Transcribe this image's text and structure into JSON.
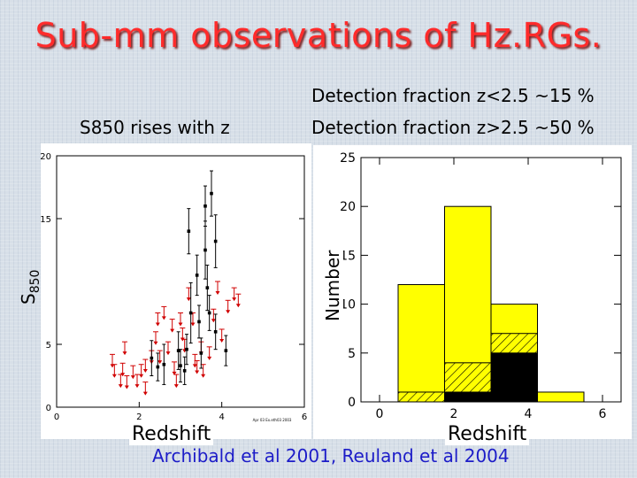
{
  "title": "Sub-mm observations of Hz.RGs.",
  "captions": {
    "left": "S850 rises with z",
    "right_line1": "Detection fraction z<2.5 ~15 %",
    "right_line2": "Detection fraction z>2.5 ~50 %"
  },
  "reference": "Archibald et al 2001, Reuland et al 2004",
  "chart_data": [
    {
      "type": "scatter",
      "xlabel": "Redshift",
      "ylabel": "S",
      "ylabel_sub": "850",
      "xlim": [
        0,
        6
      ],
      "ylim": [
        0,
        20
      ],
      "xticks": [
        "0",
        "2",
        "4",
        "6"
      ],
      "yticks": [
        "0",
        "5",
        "15",
        "20"
      ],
      "stamp": "Apr 03 Ex.eth03 2003",
      "detections": [
        {
          "x": 2.3,
          "y": 3.9,
          "err": 1.4
        },
        {
          "x": 2.45,
          "y": 3.2,
          "err": 1.1
        },
        {
          "x": 2.6,
          "y": 3.4,
          "err": 1.6
        },
        {
          "x": 2.95,
          "y": 4.5,
          "err": 1.5
        },
        {
          "x": 3.0,
          "y": 3.3,
          "err": 1.3
        },
        {
          "x": 3.1,
          "y": 2.9,
          "err": 1.1
        },
        {
          "x": 3.15,
          "y": 4.6,
          "err": 1.2
        },
        {
          "x": 3.2,
          "y": 14.0,
          "err": 1.8
        },
        {
          "x": 3.25,
          "y": 7.5,
          "err": 2.4
        },
        {
          "x": 3.4,
          "y": 10.5,
          "err": 1.6
        },
        {
          "x": 3.45,
          "y": 6.8,
          "err": 1.3
        },
        {
          "x": 3.6,
          "y": 16.0,
          "err": 1.6
        },
        {
          "x": 3.6,
          "y": 12.5,
          "err": 2.3
        },
        {
          "x": 3.65,
          "y": 9.5,
          "err": 1.8
        },
        {
          "x": 3.7,
          "y": 7.5,
          "err": 1.4
        },
        {
          "x": 3.75,
          "y": 17.0,
          "err": 1.8
        },
        {
          "x": 3.85,
          "y": 13.2,
          "err": 2.1
        },
        {
          "x": 3.5,
          "y": 4.3,
          "err": 1.2
        },
        {
          "x": 3.85,
          "y": 6.0,
          "err": 1.4
        },
        {
          "x": 4.1,
          "y": 4.5,
          "err": 1.2
        }
      ],
      "upper_limits": [
        {
          "x": 1.35,
          "y": 4.2
        },
        {
          "x": 1.4,
          "y": 3.4
        },
        {
          "x": 1.55,
          "y": 2.6
        },
        {
          "x": 1.6,
          "y": 3.5
        },
        {
          "x": 1.65,
          "y": 5.2
        },
        {
          "x": 1.7,
          "y": 2.5
        },
        {
          "x": 1.85,
          "y": 3.3
        },
        {
          "x": 1.95,
          "y": 2.6
        },
        {
          "x": 2.05,
          "y": 3.4
        },
        {
          "x": 2.15,
          "y": 3.8
        },
        {
          "x": 2.15,
          "y": 2.0
        },
        {
          "x": 2.3,
          "y": 4.5
        },
        {
          "x": 2.4,
          "y": 6.0
        },
        {
          "x": 2.45,
          "y": 7.5
        },
        {
          "x": 2.5,
          "y": 4.5
        },
        {
          "x": 2.6,
          "y": 8.0
        },
        {
          "x": 2.7,
          "y": 5.2
        },
        {
          "x": 2.8,
          "y": 7.0
        },
        {
          "x": 2.85,
          "y": 3.6
        },
        {
          "x": 2.9,
          "y": 2.6
        },
        {
          "x": 3.0,
          "y": 7.5
        },
        {
          "x": 3.05,
          "y": 6.3
        },
        {
          "x": 3.1,
          "y": 5.4
        },
        {
          "x": 3.2,
          "y": 9.5
        },
        {
          "x": 3.3,
          "y": 7.5
        },
        {
          "x": 3.35,
          "y": 4.2
        },
        {
          "x": 3.4,
          "y": 3.7
        },
        {
          "x": 3.5,
          "y": 5.2
        },
        {
          "x": 3.55,
          "y": 3.4
        },
        {
          "x": 3.7,
          "y": 4.8
        },
        {
          "x": 3.8,
          "y": 7.8
        },
        {
          "x": 3.9,
          "y": 10.0
        },
        {
          "x": 4.0,
          "y": 6.2
        },
        {
          "x": 4.15,
          "y": 8.5
        },
        {
          "x": 4.3,
          "y": 9.5
        },
        {
          "x": 4.4,
          "y": 9.0
        }
      ]
    },
    {
      "type": "bar",
      "subtype": "histogram",
      "xlabel": "Redshift",
      "ylabel": "Number",
      "xlim": [
        -0.5,
        6.5
      ],
      "ylim": [
        0,
        25
      ],
      "xticks": [
        "0",
        "2",
        "4",
        "6"
      ],
      "yticks": [
        "0",
        "5",
        "10",
        "15",
        "20",
        "25"
      ],
      "bin_width": 1.25,
      "series": [
        {
          "name": "all",
          "fill": "#ffff00",
          "bins": [
            {
              "x0": 0.5,
              "x1": 1.75,
              "value": 12
            },
            {
              "x0": 1.75,
              "x1": 3.0,
              "value": 20
            },
            {
              "x0": 3.0,
              "x1": 4.25,
              "value": 10
            },
            {
              "x0": 4.25,
              "x1": 5.5,
              "value": 1
            }
          ]
        },
        {
          "name": "hatched",
          "fill": "hatch",
          "bins": [
            {
              "x0": 0.5,
              "x1": 1.75,
              "value": 1
            },
            {
              "x0": 1.75,
              "x1": 3.0,
              "value": 4
            },
            {
              "x0": 3.0,
              "x1": 4.25,
              "value": 7
            }
          ]
        },
        {
          "name": "black",
          "fill": "#000000",
          "bins": [
            {
              "x0": 1.75,
              "x1": 3.0,
              "value": 1
            },
            {
              "x0": 3.0,
              "x1": 4.25,
              "value": 5
            }
          ]
        }
      ]
    }
  ]
}
